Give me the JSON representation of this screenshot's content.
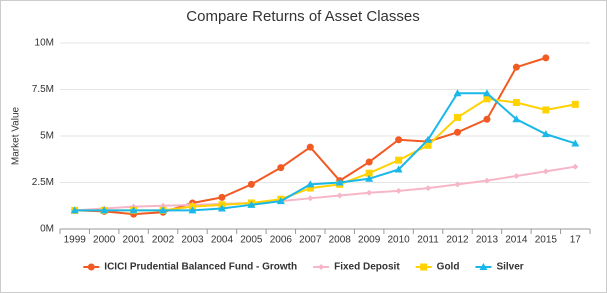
{
  "chart_data": {
    "type": "line",
    "title": "Compare Returns of Asset Classes",
    "y_label": "Market Value",
    "categories": [
      "1999",
      "2000",
      "2001",
      "2002",
      "2003",
      "2004",
      "2005",
      "2006",
      "2007",
      "2008",
      "2009",
      "2010",
      "2011",
      "2012",
      "2013",
      "2014",
      "2015",
      "17"
    ],
    "ylim": [
      0,
      10000000
    ],
    "yticks": [
      {
        "value": 0,
        "label": "0M"
      },
      {
        "value": 2500000,
        "label": "2.5M"
      },
      {
        "value": 5000000,
        "label": "5M"
      },
      {
        "value": 7500000,
        "label": "7.5M"
      },
      {
        "value": 10000000,
        "label": "10M"
      }
    ],
    "grid": true,
    "legend": "bottom",
    "series": [
      {
        "name": "ICICI Prudential Balanced Fund - Growth",
        "color": "#f15a22",
        "marker": "circle",
        "values": [
          1000000,
          950000,
          800000,
          900000,
          1400000,
          1700000,
          2400000,
          3300000,
          4400000,
          2600000,
          3600000,
          4800000,
          4700000,
          5200000,
          5900000,
          8700000,
          9200000,
          null
        ]
      },
      {
        "name": "Fixed Deposit",
        "color": "#f7b6c8",
        "marker": "diamond",
        "values": [
          1000000,
          1100000,
          1200000,
          1250000,
          1300000,
          1350000,
          1400000,
          1500000,
          1650000,
          1800000,
          1950000,
          2050000,
          2200000,
          2400000,
          2600000,
          2850000,
          3100000,
          3350000
        ]
      },
      {
        "name": "Gold",
        "color": "#ffd200",
        "marker": "square",
        "values": [
          1000000,
          1000000,
          1000000,
          1000000,
          1200000,
          1300000,
          1400000,
          1600000,
          2200000,
          2400000,
          3000000,
          3700000,
          4500000,
          6000000,
          7000000,
          6800000,
          6400000,
          6700000
        ]
      },
      {
        "name": "Silver",
        "color": "#1ab8e8",
        "marker": "triangle",
        "values": [
          1000000,
          1000000,
          1000000,
          1000000,
          1000000,
          1100000,
          1300000,
          1500000,
          2400000,
          2500000,
          2700000,
          3200000,
          4800000,
          7300000,
          7300000,
          5900000,
          5100000,
          4600000
        ]
      }
    ]
  }
}
